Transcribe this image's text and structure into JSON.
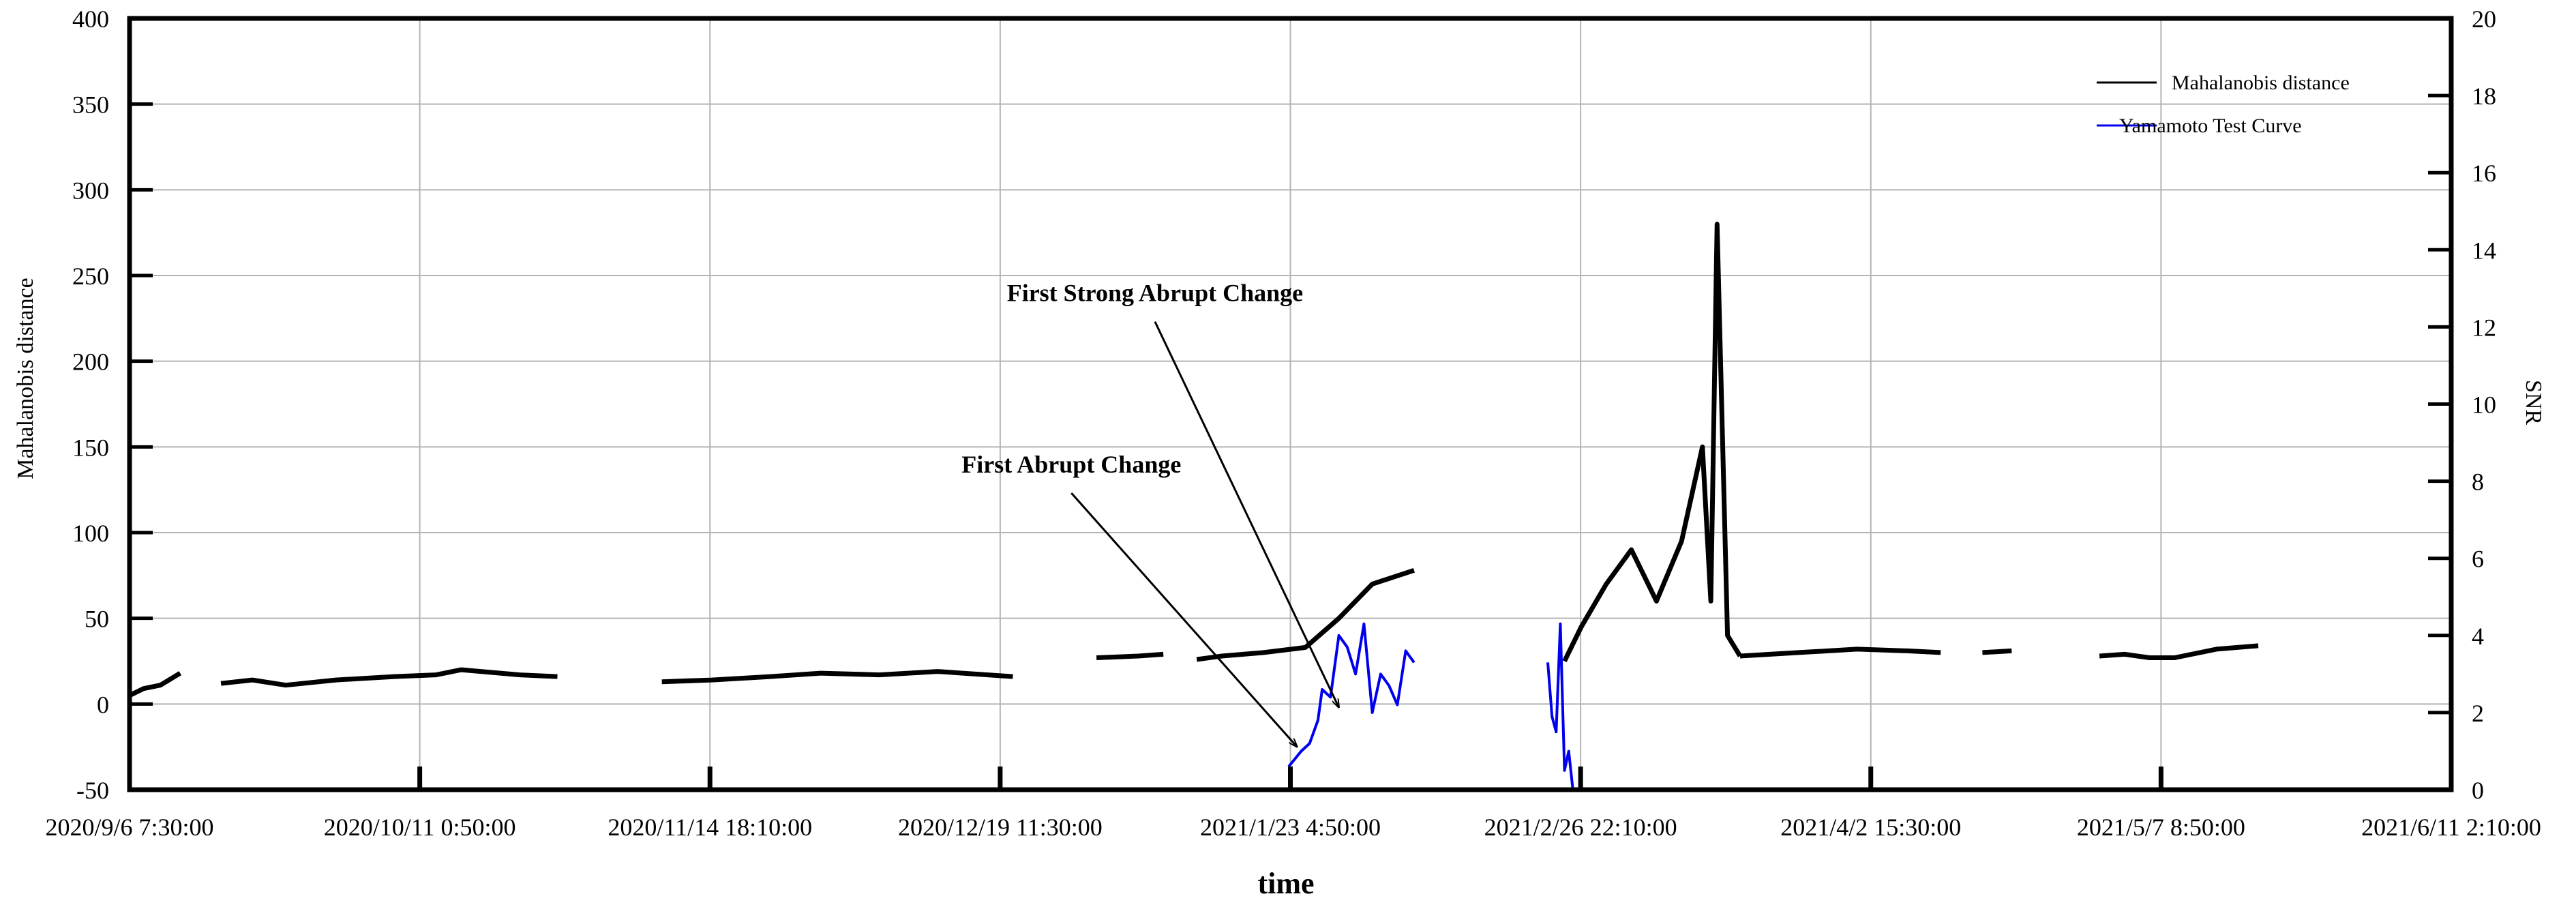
{
  "chart_data": {
    "type": "line",
    "title": "",
    "xlabel": "time",
    "ylabel_left": "Mahalanobis distance",
    "ylabel_right": "SNR",
    "x_tick_labels": [
      "2020/9/6  7:30:00",
      "2020/10/11  0:50:00",
      "2020/11/14  18:10:00",
      "2020/12/19  11:30:00",
      "2021/1/23  4:50:00",
      "2021/2/26  22:10:00",
      "2021/4/2  15:30:00",
      "2021/5/7  8:50:00",
      "2021/6/11  2:10:00"
    ],
    "xlim": [
      "2020-09-06 07:30",
      "2021-06-11 02:10"
    ],
    "ylim_left": [
      -50,
      400
    ],
    "ylim_right": [
      0,
      20
    ],
    "yticks_left": [
      -50,
      0,
      50,
      100,
      150,
      200,
      250,
      300,
      350,
      400
    ],
    "yticks_right": [
      0,
      2,
      4,
      6,
      8,
      10,
      12,
      14,
      16,
      18,
      20
    ],
    "grid": true,
    "legend_position": "top-right",
    "series": [
      {
        "name": "Mahalanobis distance",
        "axis": "left",
        "color": "#000000",
        "note_segments": "data gaps between segments",
        "segments": [
          {
            "x": [
              "2020-09-06 07:30",
              "2020-09-08 00:00",
              "2020-09-10 00:00",
              "2020-09-12 09:00"
            ],
            "y": [
              5,
              9,
              11,
              18
            ]
          },
          {
            "x": [
              "2020-09-17 06:00",
              "2020-09-21 00:00",
              "2020-09-25 00:00",
              "2020-10-01 00:00",
              "2020-10-08 00:00",
              "2020-10-13 00:00",
              "2020-10-16 00:00",
              "2020-10-23 00:00",
              "2020-10-27 12:00"
            ],
            "y": [
              12,
              14,
              11,
              14,
              16,
              17,
              20,
              17,
              16
            ]
          },
          {
            "x": [
              "2020-11-09 00:00",
              "2020-11-15 00:00",
              "2020-11-22 00:00",
              "2020-11-28 00:00",
              "2020-12-05 00:00",
              "2020-12-12 00:00",
              "2020-12-18 00:00",
              "2020-12-21 00:00"
            ],
            "y": [
              13,
              14,
              16,
              18,
              17,
              19,
              17,
              16
            ]
          },
          {
            "x": [
              "2020-12-31 00:00",
              "2021-01-05 00:00",
              "2021-01-08 00:00"
            ],
            "y": [
              27,
              28,
              29
            ]
          },
          {
            "x": [
              "2021-01-12 00:00",
              "2021-01-15 00:00",
              "2021-01-20 00:00",
              "2021-01-25 00:00",
              "2021-01-29 00:00",
              "2021-02-02 00:00",
              "2021-02-07 00:00"
            ],
            "y": [
              26,
              28,
              30,
              33,
              50,
              70,
              78
            ]
          },
          {
            "x": [
              "2021-02-25 00:00",
              "2021-02-27 00:00",
              "2021-03-02 00:00",
              "2021-03-05 00:00",
              "2021-03-08 00:00",
              "2021-03-11 00:00",
              "2021-03-13 12:00",
              "2021-03-14 12:00",
              "2021-03-15 06:00",
              "2021-03-16 12:00",
              "2021-03-18 00:00"
            ],
            "y": [
              25,
              45,
              70,
              90,
              60,
              95,
              150,
              60,
              280,
              40,
              28
            ]
          },
          {
            "x": [
              "2021-03-18 00:00",
              "2021-03-25 00:00",
              "2021-04-01 00:00",
              "2021-04-07 00:00",
              "2021-04-11 00:00"
            ],
            "y": [
              28,
              30,
              32,
              31,
              30
            ]
          },
          {
            "x": [
              "2021-04-16 00:00",
              "2021-04-19 12:00"
            ],
            "y": [
              30,
              31
            ]
          },
          {
            "x": [
              "2021-04-30 00:00",
              "2021-05-03 00:00",
              "2021-05-06 00:00",
              "2021-05-09 00:00",
              "2021-05-14 00:00",
              "2021-05-19 00:00"
            ],
            "y": [
              28,
              29,
              27,
              27,
              32,
              34
            ]
          }
        ]
      },
      {
        "name": "Yamamoto Test Curve",
        "axis": "right",
        "color": "#0000ee",
        "segments": [
          {
            "x": [
              "2021-01-23 00:00",
              "2021-01-24 12:00",
              "2021-01-25 12:00",
              "2021-01-26 12:00",
              "2021-01-27 00:00",
              "2021-01-28 00:00",
              "2021-01-29 00:00",
              "2021-01-30 00:00",
              "2021-01-31 00:00",
              "2021-02-01 00:00",
              "2021-02-02 00:00",
              "2021-02-03 00:00",
              "2021-02-04 00:00",
              "2021-02-05 00:00",
              "2021-02-06 00:00",
              "2021-02-07 00:00"
            ],
            "y": [
              0.6,
              1.0,
              1.2,
              1.8,
              2.6,
              2.4,
              4.0,
              3.7,
              3.0,
              4.3,
              2.0,
              3.0,
              2.7,
              2.2,
              3.6,
              3.3
            ]
          },
          {
            "x": [
              "2021-02-23 00:00",
              "2021-02-23 12:00",
              "2021-02-24 00:00",
              "2021-02-24 12:00",
              "2021-02-25 00:00",
              "2021-02-25 12:00",
              "2021-02-26 00:00"
            ],
            "y": [
              3.3,
              1.9,
              1.5,
              4.3,
              0.5,
              1.0,
              0
            ]
          }
        ]
      }
    ],
    "annotations": [
      {
        "text": "First Strong Abrupt Change",
        "label_x": "2021-01-07 00:00",
        "label_y": 235,
        "point_x": "2021-01-29 00:00",
        "point_y": -2
      },
      {
        "text": "First Abrupt Change",
        "label_x": "2020-12-28 00:00",
        "label_y": 135,
        "point_x": "2021-01-24 00:00",
        "point_y": -25
      }
    ]
  }
}
